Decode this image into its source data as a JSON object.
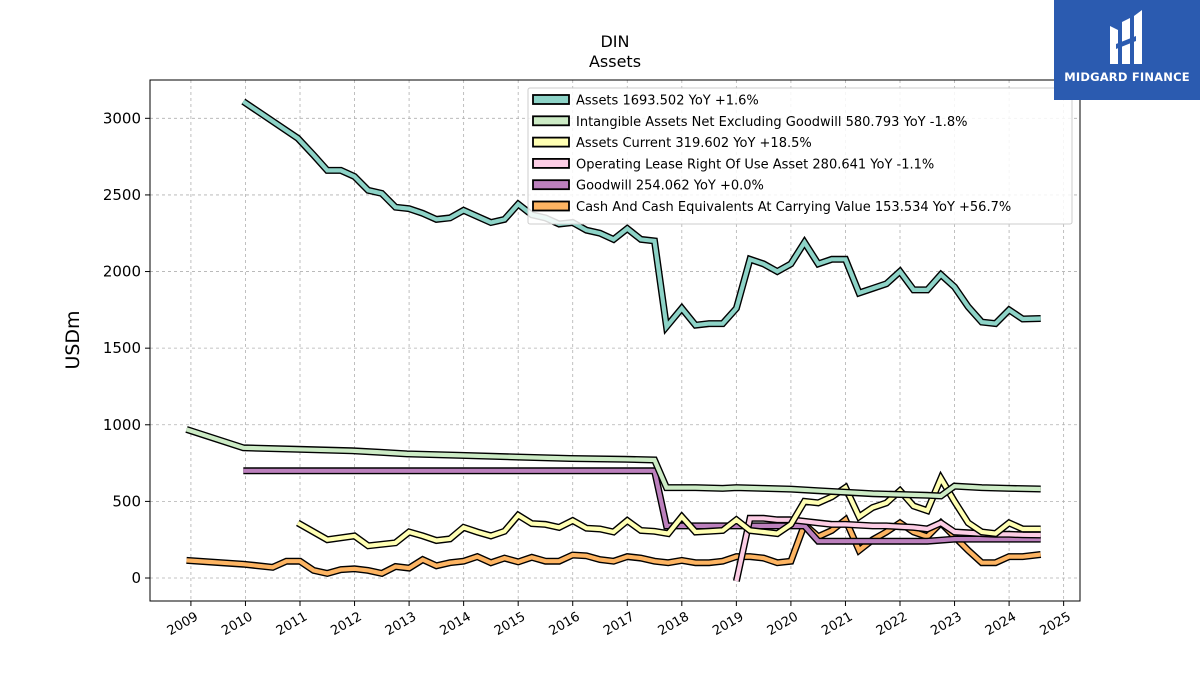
{
  "chart_data": {
    "type": "line",
    "title": "DIN",
    "subtitle": "Assets",
    "ylabel": "USDm",
    "ylim": [
      -150,
      3250
    ],
    "xlim": [
      2008.25,
      2025.3
    ],
    "x_ticks": [
      2009,
      2010,
      2011,
      2012,
      2013,
      2014,
      2015,
      2016,
      2017,
      2018,
      2019,
      2020,
      2021,
      2022,
      2023,
      2024,
      2025
    ],
    "x_tick_labels": [
      "2009",
      "2010",
      "2011",
      "2012",
      "2013",
      "2014",
      "2015",
      "2016",
      "2017",
      "2018",
      "2019",
      "2020",
      "2021",
      "2022",
      "2023",
      "2024",
      "2025"
    ],
    "y_ticks": [
      0,
      500,
      1000,
      1500,
      2000,
      2500,
      3000
    ],
    "y_tick_labels": [
      "0",
      "500",
      "1000",
      "1500",
      "2000",
      "2500",
      "3000"
    ],
    "grid": true,
    "legend_position": "top-right",
    "series": [
      {
        "name": "Assets",
        "legend": "Assets  1693.502 YoY +1.6%",
        "color": "#8dd3c7",
        "points": [
          [
            2009.96,
            3110
          ],
          [
            2010.96,
            2870
          ],
          [
            2011.25,
            2760
          ],
          [
            2011.5,
            2660
          ],
          [
            2011.75,
            2660
          ],
          [
            2012.0,
            2620
          ],
          [
            2012.25,
            2530
          ],
          [
            2012.5,
            2510
          ],
          [
            2012.75,
            2420
          ],
          [
            2013.0,
            2410
          ],
          [
            2013.25,
            2380
          ],
          [
            2013.5,
            2340
          ],
          [
            2013.75,
            2350
          ],
          [
            2014.0,
            2400
          ],
          [
            2014.25,
            2360
          ],
          [
            2014.5,
            2320
          ],
          [
            2014.75,
            2340
          ],
          [
            2015.0,
            2440
          ],
          [
            2015.25,
            2370
          ],
          [
            2015.5,
            2350
          ],
          [
            2015.75,
            2310
          ],
          [
            2016.0,
            2320
          ],
          [
            2016.25,
            2270
          ],
          [
            2016.5,
            2250
          ],
          [
            2016.75,
            2210
          ],
          [
            2017.0,
            2280
          ],
          [
            2017.25,
            2210
          ],
          [
            2017.5,
            2200
          ],
          [
            2017.72,
            1640
          ],
          [
            2018.0,
            1760
          ],
          [
            2018.25,
            1650
          ],
          [
            2018.5,
            1660
          ],
          [
            2018.75,
            1660
          ],
          [
            2019.0,
            1760
          ],
          [
            2019.25,
            2080
          ],
          [
            2019.5,
            2050
          ],
          [
            2019.75,
            2000
          ],
          [
            2020.0,
            2050
          ],
          [
            2020.25,
            2190
          ],
          [
            2020.5,
            2050
          ],
          [
            2020.75,
            2080
          ],
          [
            2021.0,
            2080
          ],
          [
            2021.25,
            1860
          ],
          [
            2021.5,
            1890
          ],
          [
            2021.75,
            1920
          ],
          [
            2022.0,
            2000
          ],
          [
            2022.25,
            1880
          ],
          [
            2022.5,
            1880
          ],
          [
            2022.75,
            1980
          ],
          [
            2023.0,
            1900
          ],
          [
            2023.25,
            1770
          ],
          [
            2023.5,
            1670
          ],
          [
            2023.75,
            1660
          ],
          [
            2024.0,
            1750
          ],
          [
            2024.25,
            1690
          ],
          [
            2024.58,
            1693.502
          ]
        ]
      },
      {
        "name": "Intangible Assets Net Excluding Goodwill",
        "legend": "Intangible Assets Net Excluding Goodwill  580.793 YoY -1.8%",
        "color": "#ccebc5",
        "points": [
          [
            2008.92,
            970
          ],
          [
            2009.96,
            850
          ],
          [
            2010.96,
            840
          ],
          [
            2011.96,
            830
          ],
          [
            2012.5,
            820
          ],
          [
            2012.96,
            810
          ],
          [
            2013.96,
            800
          ],
          [
            2014.96,
            790
          ],
          [
            2015.96,
            780
          ],
          [
            2016.96,
            775
          ],
          [
            2017.5,
            770
          ],
          [
            2017.72,
            590
          ],
          [
            2018.25,
            590
          ],
          [
            2018.75,
            585
          ],
          [
            2019.0,
            590
          ],
          [
            2019.5,
            585
          ],
          [
            2020.0,
            580
          ],
          [
            2020.5,
            570
          ],
          [
            2021.0,
            560
          ],
          [
            2021.5,
            550
          ],
          [
            2022.0,
            545
          ],
          [
            2022.5,
            540
          ],
          [
            2022.75,
            535
          ],
          [
            2023.0,
            600
          ],
          [
            2023.5,
            590
          ],
          [
            2024.0,
            585
          ],
          [
            2024.58,
            580.793
          ]
        ]
      },
      {
        "name": "Assets Current",
        "legend": "Assets Current  319.602 YoY +18.5%",
        "color": "#ffffb3",
        "points": [
          [
            2010.96,
            360
          ],
          [
            2011.5,
            250
          ],
          [
            2012.0,
            275
          ],
          [
            2012.25,
            210
          ],
          [
            2012.5,
            220
          ],
          [
            2012.75,
            230
          ],
          [
            2013.0,
            300
          ],
          [
            2013.25,
            275
          ],
          [
            2013.5,
            245
          ],
          [
            2013.75,
            255
          ],
          [
            2014.0,
            330
          ],
          [
            2014.25,
            300
          ],
          [
            2014.5,
            275
          ],
          [
            2014.75,
            305
          ],
          [
            2015.0,
            410
          ],
          [
            2015.25,
            355
          ],
          [
            2015.5,
            350
          ],
          [
            2015.75,
            330
          ],
          [
            2016.0,
            375
          ],
          [
            2016.25,
            325
          ],
          [
            2016.5,
            320
          ],
          [
            2016.75,
            300
          ],
          [
            2017.0,
            375
          ],
          [
            2017.25,
            310
          ],
          [
            2017.5,
            305
          ],
          [
            2017.75,
            290
          ],
          [
            2018.0,
            400
          ],
          [
            2018.25,
            300
          ],
          [
            2018.5,
            305
          ],
          [
            2018.75,
            310
          ],
          [
            2019.0,
            380
          ],
          [
            2019.25,
            310
          ],
          [
            2019.5,
            300
          ],
          [
            2019.75,
            290
          ],
          [
            2020.0,
            350
          ],
          [
            2020.25,
            500
          ],
          [
            2020.5,
            490
          ],
          [
            2020.75,
            530
          ],
          [
            2021.0,
            590
          ],
          [
            2021.25,
            400
          ],
          [
            2021.5,
            460
          ],
          [
            2021.75,
            490
          ],
          [
            2022.0,
            570
          ],
          [
            2022.25,
            470
          ],
          [
            2022.5,
            440
          ],
          [
            2022.75,
            650
          ],
          [
            2023.0,
            500
          ],
          [
            2023.25,
            360
          ],
          [
            2023.5,
            300
          ],
          [
            2023.75,
            290
          ],
          [
            2024.0,
            360
          ],
          [
            2024.25,
            320
          ],
          [
            2024.58,
            319.602
          ]
        ]
      },
      {
        "name": "Operating Lease Right Of Use Asset",
        "legend": "Operating Lease Right Of Use Asset  280.641 YoY -1.1%",
        "color": "#fccde5",
        "points": [
          [
            2019.0,
            -20
          ],
          [
            2019.25,
            390
          ],
          [
            2019.5,
            390
          ],
          [
            2019.75,
            380
          ],
          [
            2020.0,
            380
          ],
          [
            2020.25,
            370
          ],
          [
            2020.5,
            360
          ],
          [
            2020.75,
            350
          ],
          [
            2021.0,
            350
          ],
          [
            2021.25,
            345
          ],
          [
            2021.5,
            340
          ],
          [
            2021.75,
            340
          ],
          [
            2022.0,
            335
          ],
          [
            2022.25,
            330
          ],
          [
            2022.5,
            320
          ],
          [
            2022.75,
            360
          ],
          [
            2023.0,
            300
          ],
          [
            2023.25,
            295
          ],
          [
            2023.5,
            290
          ],
          [
            2023.75,
            285
          ],
          [
            2024.0,
            285
          ],
          [
            2024.25,
            282
          ],
          [
            2024.58,
            280.641
          ]
        ]
      },
      {
        "name": "Goodwill",
        "legend": "Goodwill  254.062 YoY +0.0%",
        "color": "#bc80bd",
        "points": [
          [
            2009.96,
            700
          ],
          [
            2010.96,
            700
          ],
          [
            2011.96,
            700
          ],
          [
            2012.96,
            700
          ],
          [
            2013.96,
            700
          ],
          [
            2014.96,
            700
          ],
          [
            2015.96,
            700
          ],
          [
            2016.96,
            700
          ],
          [
            2017.5,
            700
          ],
          [
            2017.72,
            340
          ],
          [
            2018.25,
            340
          ],
          [
            2018.75,
            340
          ],
          [
            2019.25,
            340
          ],
          [
            2019.75,
            340
          ],
          [
            2020.25,
            340
          ],
          [
            2020.5,
            240
          ],
          [
            2021.0,
            240
          ],
          [
            2021.5,
            240
          ],
          [
            2022.0,
            240
          ],
          [
            2022.5,
            240
          ],
          [
            2023.0,
            254
          ],
          [
            2023.5,
            254
          ],
          [
            2024.0,
            254
          ],
          [
            2024.58,
            254.062
          ]
        ]
      },
      {
        "name": "Cash And Cash Equivalents At Carrying Value",
        "legend": "Cash And Cash Equivalents At Carrying Value  153.534 YoY +56.7%",
        "color": "#fdb462",
        "points": [
          [
            2008.92,
            115
          ],
          [
            2009.96,
            90
          ],
          [
            2010.5,
            70
          ],
          [
            2010.75,
            110
          ],
          [
            2011.0,
            110
          ],
          [
            2011.25,
            50
          ],
          [
            2011.5,
            30
          ],
          [
            2011.75,
            55
          ],
          [
            2012.0,
            60
          ],
          [
            2012.25,
            50
          ],
          [
            2012.5,
            30
          ],
          [
            2012.75,
            75
          ],
          [
            2013.0,
            65
          ],
          [
            2013.25,
            120
          ],
          [
            2013.5,
            80
          ],
          [
            2013.75,
            100
          ],
          [
            2014.0,
            110
          ],
          [
            2014.25,
            140
          ],
          [
            2014.5,
            100
          ],
          [
            2014.75,
            130
          ],
          [
            2015.0,
            105
          ],
          [
            2015.25,
            135
          ],
          [
            2015.5,
            110
          ],
          [
            2015.75,
            110
          ],
          [
            2016.0,
            150
          ],
          [
            2016.25,
            145
          ],
          [
            2016.5,
            120
          ],
          [
            2016.75,
            110
          ],
          [
            2017.0,
            140
          ],
          [
            2017.25,
            130
          ],
          [
            2017.5,
            110
          ],
          [
            2017.75,
            100
          ],
          [
            2018.0,
            115
          ],
          [
            2018.25,
            100
          ],
          [
            2018.5,
            100
          ],
          [
            2018.75,
            110
          ],
          [
            2019.0,
            140
          ],
          [
            2019.25,
            140
          ],
          [
            2019.5,
            130
          ],
          [
            2019.75,
            100
          ],
          [
            2020.0,
            110
          ],
          [
            2020.25,
            350
          ],
          [
            2020.5,
            270
          ],
          [
            2020.75,
            310
          ],
          [
            2021.0,
            380
          ],
          [
            2021.25,
            180
          ],
          [
            2021.5,
            250
          ],
          [
            2021.75,
            300
          ],
          [
            2022.0,
            360
          ],
          [
            2022.25,
            300
          ],
          [
            2022.5,
            270
          ],
          [
            2022.75,
            360
          ],
          [
            2023.0,
            270
          ],
          [
            2023.25,
            180
          ],
          [
            2023.5,
            100
          ],
          [
            2023.75,
            100
          ],
          [
            2024.0,
            140
          ],
          [
            2024.25,
            140
          ],
          [
            2024.58,
            153.534
          ]
        ]
      }
    ]
  },
  "logo": {
    "text": "MIDGARD FINANCE",
    "color": "#2b5bb0"
  }
}
